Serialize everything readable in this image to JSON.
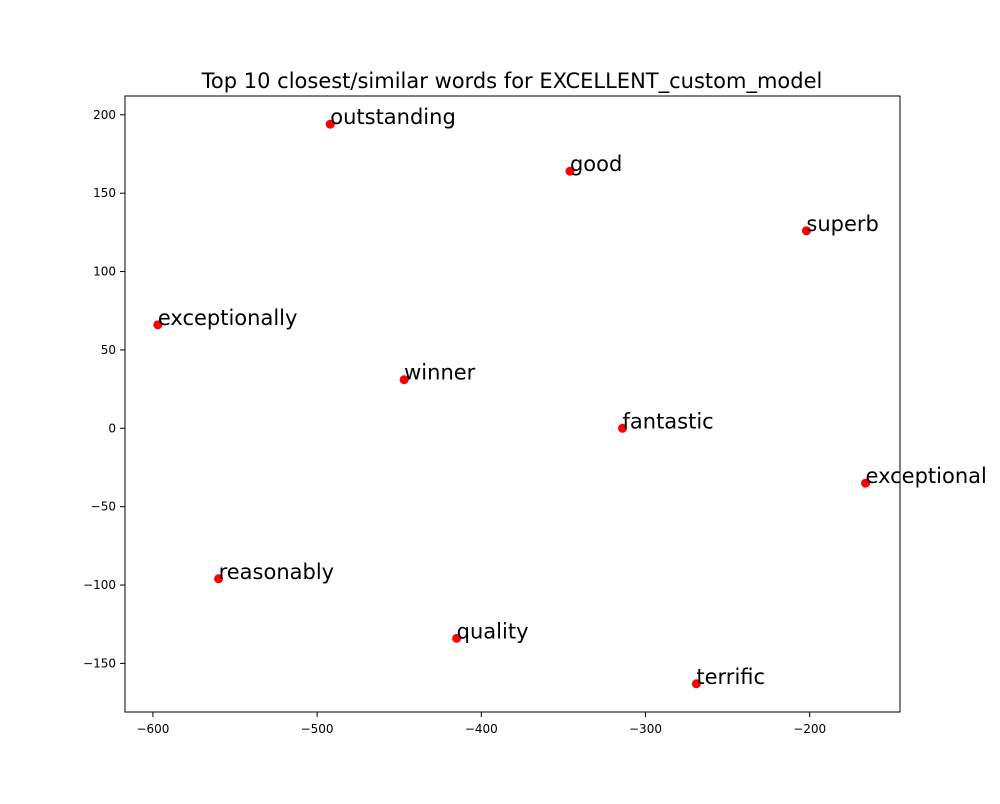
{
  "chart_data": {
    "type": "scatter",
    "title": "Top 10 closest/similar words for EXCELLENT_custom_model",
    "xlabel": "",
    "ylabel": "",
    "xlim": [
      -617,
      -145
    ],
    "ylim": [
      -181,
      212
    ],
    "grid": false,
    "xticks": [
      -600,
      -500,
      -400,
      -300,
      -200
    ],
    "yticks": [
      -150,
      -100,
      -50,
      0,
      50,
      100,
      150,
      200
    ],
    "marker_color": "#ff0000",
    "points": [
      {
        "label": "outstanding",
        "x": -492,
        "y": 194
      },
      {
        "label": "good",
        "x": -346,
        "y": 164
      },
      {
        "label": "superb",
        "x": -202,
        "y": 126
      },
      {
        "label": "exceptionally",
        "x": -597,
        "y": 66
      },
      {
        "label": "winner",
        "x": -447,
        "y": 31
      },
      {
        "label": "fantastic",
        "x": -314,
        "y": 0
      },
      {
        "label": "exceptional",
        "x": -166,
        "y": -35
      },
      {
        "label": "reasonably",
        "x": -560,
        "y": -96
      },
      {
        "label": "quality",
        "x": -415,
        "y": -134
      },
      {
        "label": "terrific",
        "x": -269,
        "y": -163
      }
    ]
  }
}
